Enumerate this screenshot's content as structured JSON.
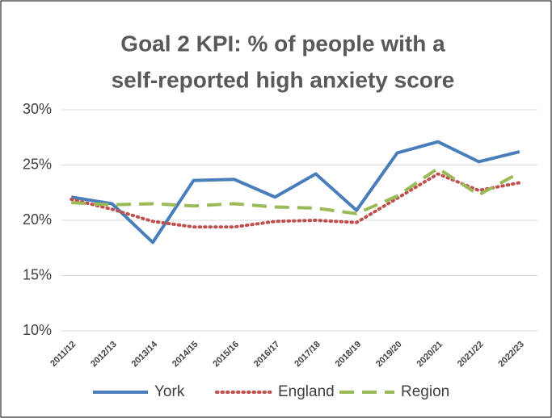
{
  "chart_data": {
    "type": "line",
    "title": [
      "Goal 2 KPI: % of people with a",
      "self-reported high anxiety score"
    ],
    "categories": [
      "2011/12",
      "2012/13",
      "2013/14",
      "2014/15",
      "2015/16",
      "2016/17",
      "2017/18",
      "2018/19",
      "2019/20",
      "2020/21",
      "2021/22",
      "2022/23"
    ],
    "series": [
      {
        "name": "York",
        "color": "#4a7ebb",
        "style": "solid",
        "values": [
          22.1,
          21.5,
          18.0,
          23.6,
          23.7,
          22.1,
          24.2,
          20.9,
          26.1,
          27.1,
          25.3,
          26.2
        ]
      },
      {
        "name": "England",
        "color": "#c0504d",
        "style": "dotted",
        "values": [
          21.9,
          21.0,
          19.9,
          19.4,
          19.4,
          19.9,
          20.0,
          19.8,
          22.0,
          24.2,
          22.7,
          23.4
        ]
      },
      {
        "name": "Region",
        "color": "#9bbb59",
        "style": "dashed",
        "values": [
          21.6,
          21.4,
          21.5,
          21.3,
          21.5,
          21.2,
          21.1,
          20.6,
          22.2,
          24.7,
          22.3,
          24.3
        ]
      }
    ],
    "ylim": [
      10,
      30
    ],
    "yticks": [
      {
        "value": 10,
        "label": "10%"
      },
      {
        "value": 15,
        "label": "15%"
      },
      {
        "value": 20,
        "label": "20%"
      },
      {
        "value": 25,
        "label": "25%"
      },
      {
        "value": 30,
        "label": "30%"
      }
    ],
    "grid": true,
    "legend": "bottom"
  }
}
